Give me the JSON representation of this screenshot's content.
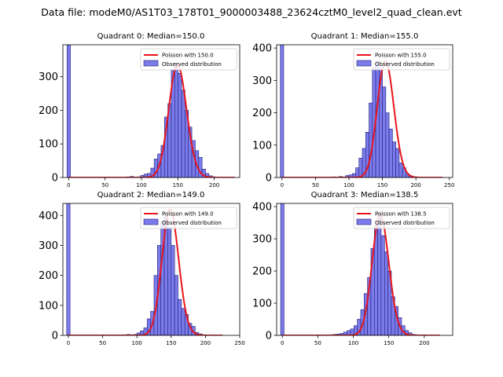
{
  "figure": {
    "suptitle": "Data file: modeM0/AS1T03_178T01_9000003488_23624cztM0_level2_quad_clean.evt"
  },
  "colors": {
    "bar_fill": "#7b7bea",
    "bar_edge": "#1f1f7a",
    "poisson_line": "#e8151b",
    "axes": "#000000"
  },
  "chart_data": [
    {
      "type": "bar",
      "title": "Quadrant 0: Median=150.0",
      "xlim": [
        -8,
        235
      ],
      "ylim": [
        0,
        395
      ],
      "xticks": [
        0,
        50,
        100,
        150,
        200
      ],
      "yticks": [
        0,
        100,
        200,
        300
      ],
      "legend": [
        "Poisson with 150.0",
        "Observed distribution"
      ],
      "legend_loc": "upper right",
      "spike": {
        "x": 0,
        "value": 395
      },
      "bins": {
        "start": 0,
        "width": 4.7,
        "values": [
          0,
          0,
          0,
          0,
          0,
          0,
          0,
          0,
          0,
          0,
          0,
          0,
          0,
          0,
          0,
          0,
          0,
          2,
          3,
          0,
          2,
          6,
          10,
          12,
          28,
          55,
          70,
          95,
          180,
          220,
          320,
          340,
          310,
          260,
          200,
          150,
          110,
          80,
          60,
          25,
          12,
          5,
          2,
          1
        ]
      },
      "poisson": {
        "mu": 150.0,
        "peak": 335,
        "x_range": [
          0,
          228
        ]
      }
    },
    {
      "type": "bar",
      "title": "Quadrant 1: Median=155.0",
      "xlim": [
        -8,
        255
      ],
      "ylim": [
        0,
        410
      ],
      "xticks": [
        0,
        50,
        100,
        150,
        200,
        250
      ],
      "yticks": [
        0,
        100,
        200,
        300,
        400
      ],
      "legend": [
        "Poisson with 155.0",
        "Observed distribution"
      ],
      "legend_loc": "upper right",
      "spike": {
        "x": 0,
        "value": 410
      },
      "bins": {
        "start": 0,
        "width": 5.0,
        "values": [
          0,
          0,
          0,
          0,
          0,
          0,
          0,
          0,
          0,
          0,
          0,
          0,
          0,
          0,
          1,
          2,
          1,
          3,
          2,
          6,
          8,
          12,
          30,
          60,
          90,
          140,
          230,
          340,
          360,
          335,
          280,
          200,
          150,
          110,
          90,
          45,
          30,
          10,
          5,
          2,
          1
        ]
      },
      "poisson": {
        "mu": 155.0,
        "peak": 360,
        "x_range": [
          0,
          240
        ]
      }
    },
    {
      "type": "bar",
      "title": "Quadrant 2: Median=149.0",
      "xlim": [
        -8,
        250
      ],
      "ylim": [
        0,
        440
      ],
      "xticks": [
        0,
        50,
        100,
        150,
        200,
        250
      ],
      "yticks": [
        0,
        100,
        200,
        300,
        400
      ],
      "legend": [
        "Poisson with 149.0",
        "Observed distribution"
      ],
      "legend_loc": "upper right",
      "spike": {
        "x": 0,
        "value": 440
      },
      "bins": {
        "start": 0,
        "width": 5.0,
        "values": [
          0,
          0,
          0,
          0,
          0,
          0,
          0,
          0,
          0,
          0,
          0,
          0,
          0,
          0,
          0,
          0,
          2,
          3,
          2,
          3,
          8,
          15,
          25,
          55,
          80,
          200,
          300,
          380,
          400,
          360,
          300,
          200,
          120,
          90,
          70,
          40,
          30,
          10,
          5,
          2,
          1
        ]
      },
      "poisson": {
        "mu": 149.0,
        "peak": 420,
        "x_range": [
          0,
          225
        ]
      }
    },
    {
      "type": "bar",
      "title": "Quadrant 3: Median=138.5",
      "xlim": [
        -8,
        240
      ],
      "ylim": [
        0,
        410
      ],
      "xticks": [
        0,
        50,
        100,
        150,
        200
      ],
      "yticks": [
        0,
        100,
        200,
        300,
        400
      ],
      "legend": [
        "Poisson with 138.5",
        "Observed distribution"
      ],
      "legend_loc": "upper right",
      "spike": {
        "x": 0,
        "value": 410
      },
      "bins": {
        "start": 0,
        "width": 4.8,
        "values": [
          0,
          0,
          0,
          0,
          0,
          0,
          0,
          0,
          0,
          0,
          0,
          0,
          0,
          1,
          2,
          3,
          4,
          6,
          10,
          15,
          20,
          30,
          50,
          80,
          130,
          180,
          270,
          340,
          380,
          310,
          260,
          200,
          120,
          90,
          55,
          30,
          15,
          8,
          3,
          2,
          1
        ]
      },
      "poisson": {
        "mu": 138.5,
        "peak": 375,
        "x_range": [
          0,
          222
        ]
      }
    }
  ]
}
